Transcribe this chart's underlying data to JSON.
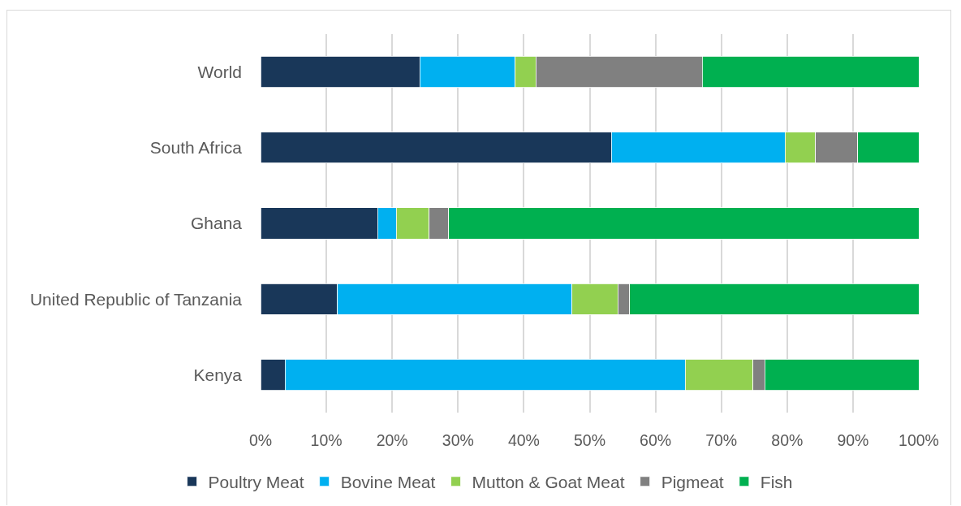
{
  "chart_data": {
    "type": "bar",
    "orientation": "horizontal",
    "stacked": true,
    "categories": [
      "World",
      "South Africa",
      "Ghana",
      "United Republic of Tanzania",
      "Kenya"
    ],
    "series": [
      {
        "name": "Poultry Meat",
        "color": "#193759",
        "values": [
          24.2,
          53.3,
          17.8,
          11.7,
          3.7
        ]
      },
      {
        "name": "Bovine Meat",
        "color": "#00b0f0",
        "values": [
          14.5,
          26.4,
          2.8,
          35.6,
          60.8
        ]
      },
      {
        "name": "Mutton & Goat Meat",
        "color": "#92d050",
        "values": [
          3.1,
          4.6,
          5.0,
          7.0,
          10.3
        ]
      },
      {
        "name": "Pigmeat",
        "color": "#808080",
        "values": [
          25.3,
          6.4,
          3.0,
          1.8,
          1.8
        ]
      },
      {
        "name": "Fish",
        "color": "#00b050",
        "values": [
          32.9,
          9.3,
          71.4,
          43.9,
          23.4
        ]
      }
    ],
    "xlim": [
      0,
      100
    ],
    "xticks": [
      {
        "value": 0,
        "label": "0%"
      },
      {
        "value": 10,
        "label": "10%"
      },
      {
        "value": 20,
        "label": "20%"
      },
      {
        "value": 30,
        "label": "30%"
      },
      {
        "value": 40,
        "label": "40%"
      },
      {
        "value": 50,
        "label": "50%"
      },
      {
        "value": 60,
        "label": "60%"
      },
      {
        "value": 70,
        "label": "70%"
      },
      {
        "value": 80,
        "label": "80%"
      },
      {
        "value": 90,
        "label": "90%"
      },
      {
        "value": 100,
        "label": "100%"
      }
    ],
    "grid": "x",
    "legend": "bottom"
  }
}
